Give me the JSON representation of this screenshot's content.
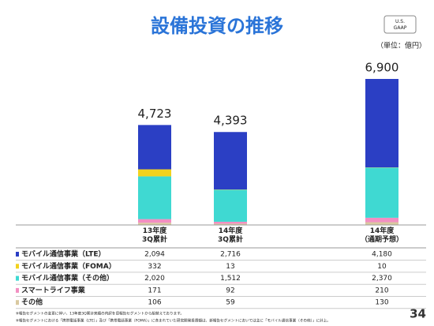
{
  "chart_data": {
    "type": "stacked-bar",
    "title": "設備投資の推移",
    "badge": "U.S.\nGAAP",
    "unit": "（単位：億円）",
    "categories": [
      "13年度\n3Q累計",
      "14年度\n3Q累計",
      "14年度\n（通期予想）"
    ],
    "totals": [
      4723,
      4393,
      6900
    ],
    "total_labels": [
      "4,723",
      "4,393",
      "6,900"
    ],
    "series": [
      {
        "name": "モバイル通信事業（LTE）",
        "color": "#2b3fc4",
        "values": [
          2094,
          2716,
          4180
        ],
        "value_labels": [
          "2,094",
          "2,716",
          "4,180"
        ]
      },
      {
        "name": "モバイル通信事業（FOMA）",
        "color": "#f2d21e",
        "values": [
          332,
          13,
          10
        ],
        "value_labels": [
          "332",
          "13",
          "10"
        ]
      },
      {
        "name": "モバイル通信事業（その他）",
        "color": "#3fd9d2",
        "values": [
          2020,
          1512,
          2370
        ],
        "value_labels": [
          "2,020",
          "1,512",
          "2,370"
        ]
      },
      {
        "name": "スマートライフ事業",
        "color": "#f28fc2",
        "values": [
          171,
          92,
          210
        ],
        "value_labels": [
          "171",
          "92",
          "210"
        ]
      },
      {
        "name": "その他",
        "color": "#d9c9a0",
        "values": [
          106,
          59,
          130
        ],
        "value_labels": [
          "106",
          "59",
          "130"
        ]
      }
    ],
    "footnotes": [
      "※報告セグメントの変更に伴い、13年度3Q累計実績の内訳を旧報告セグメントから組替えております。",
      "※報告セグメントにおける「携帯電話事業（LTE）」及び「携帯電話事業（FOMA）」に含まれていた研究開発投資額は、新報告セグメントにおいては主に「モバイル通信事業（その他）」に計上。"
    ],
    "page_number": "34"
  }
}
